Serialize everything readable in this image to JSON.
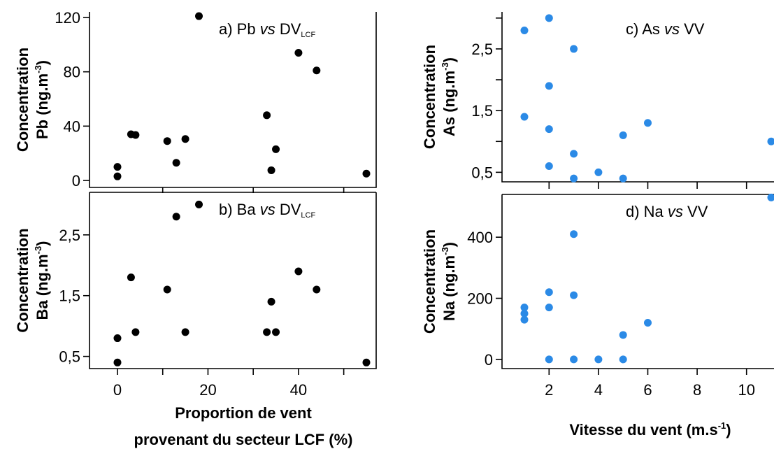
{
  "chart_data": [
    {
      "id": "a",
      "type": "scatter",
      "title": {
        "prefix": "a) Pb ",
        "vs": "vs",
        "var": " DV",
        "sub": "LCF"
      },
      "ylabel_lines": [
        "Concentration",
        "Pb (ng.m"
      ],
      "ylabel_sup": "-3",
      "ylabel_close": ")",
      "ylim": [
        0,
        120
      ],
      "yticks": [
        {
          "v": 0,
          "label": "0"
        },
        {
          "v": 40,
          "label": "40"
        },
        {
          "v": 80,
          "label": "80"
        },
        {
          "v": 120,
          "label": "120"
        }
      ],
      "xlim": [
        0,
        55
      ],
      "xticks_minor": [
        10,
        30,
        50
      ],
      "color": "#000000",
      "points": [
        {
          "x": 0,
          "y": 10
        },
        {
          "x": 0,
          "y": 3
        },
        {
          "x": 3,
          "y": 34
        },
        {
          "x": 4,
          "y": 33.5
        },
        {
          "x": 11,
          "y": 29
        },
        {
          "x": 13,
          "y": 13
        },
        {
          "x": 15,
          "y": 30.5
        },
        {
          "x": 18,
          "y": 121
        },
        {
          "x": 33,
          "y": 48
        },
        {
          "x": 34,
          "y": 7.5
        },
        {
          "x": 35,
          "y": 23
        },
        {
          "x": 40,
          "y": 94
        },
        {
          "x": 44,
          "y": 81
        },
        {
          "x": 55,
          "y": 5
        }
      ]
    },
    {
      "id": "b",
      "type": "scatter",
      "title": {
        "prefix": "b) Ba ",
        "vs": "vs",
        "var": " DV",
        "sub": "LCF"
      },
      "ylabel_lines": [
        "Concentration",
        "Ba (ng.m"
      ],
      "ylabel_sup": "-3",
      "ylabel_close": ")",
      "ylim": [
        0.3,
        3.2
      ],
      "yticks": [
        {
          "v": 0.5,
          "label": "0,5"
        },
        {
          "v": 1.5,
          "label": "1,5"
        },
        {
          "v": 2.5,
          "label": "2,5"
        }
      ],
      "xlim": [
        0,
        55
      ],
      "xticks": [
        {
          "v": 0,
          "label": "0"
        },
        {
          "v": 20,
          "label": "20"
        },
        {
          "v": 40,
          "label": "40"
        }
      ],
      "xticks_minor": [
        10,
        30,
        50
      ],
      "xlabel_lines": [
        "Proportion de vent",
        "provenant du secteur LCF (%)"
      ],
      "color": "#000000",
      "points": [
        {
          "x": 0,
          "y": 0.8
        },
        {
          "x": 0,
          "y": 0.4
        },
        {
          "x": 3,
          "y": 1.8
        },
        {
          "x": 4,
          "y": 0.9
        },
        {
          "x": 11,
          "y": 1.6
        },
        {
          "x": 13,
          "y": 2.8
        },
        {
          "x": 15,
          "y": 0.9
        },
        {
          "x": 18,
          "y": 3.0
        },
        {
          "x": 33,
          "y": 0.9
        },
        {
          "x": 34,
          "y": 1.4
        },
        {
          "x": 35,
          "y": 0.9
        },
        {
          "x": 40,
          "y": 1.9
        },
        {
          "x": 44,
          "y": 1.6
        },
        {
          "x": 55,
          "y": 0.4
        }
      ]
    },
    {
      "id": "c",
      "type": "scatter",
      "title": {
        "prefix": "c) As ",
        "vs": "vs",
        "var": " VV",
        "sub": ""
      },
      "ylabel_lines": [
        "Concentration",
        "As (ng.m"
      ],
      "ylabel_sup": "-3",
      "ylabel_close": ")",
      "ylim": [
        0.3,
        3.1
      ],
      "yticks": [
        {
          "v": 0.5,
          "label": "0,5"
        },
        {
          "v": 1.5,
          "label": "1,5"
        },
        {
          "v": 2.5,
          "label": "2,5"
        }
      ],
      "yticks_minor": [
        1,
        2,
        3
      ],
      "xlim": [
        1,
        11
      ],
      "xticks_minor": [
        2,
        4,
        6,
        8,
        10
      ],
      "color": "#2b8ae6",
      "points": [
        {
          "x": 1,
          "y": 2.8
        },
        {
          "x": 1,
          "y": 1.4
        },
        {
          "x": 2,
          "y": 3.0
        },
        {
          "x": 2,
          "y": 1.9
        },
        {
          "x": 2,
          "y": 1.2
        },
        {
          "x": 2,
          "y": 0.6
        },
        {
          "x": 3,
          "y": 2.5
        },
        {
          "x": 3,
          "y": 0.8
        },
        {
          "x": 3,
          "y": 0.4
        },
        {
          "x": 4,
          "y": 0.5
        },
        {
          "x": 5,
          "y": 1.1
        },
        {
          "x": 5,
          "y": 0.4
        },
        {
          "x": 6,
          "y": 1.3
        },
        {
          "x": 11,
          "y": 1.0
        }
      ]
    },
    {
      "id": "d",
      "type": "scatter",
      "title": {
        "prefix": "d) Na ",
        "vs": "vs",
        "var": " VV",
        "sub": ""
      },
      "ylabel_lines": [
        "Concentration",
        "Na (ng.m"
      ],
      "ylabel_sup": "-3",
      "ylabel_close": ")",
      "ylim": [
        -30,
        540
      ],
      "yticks": [
        {
          "v": 0,
          "label": "0"
        },
        {
          "v": 200,
          "label": "200"
        },
        {
          "v": 400,
          "label": "400"
        }
      ],
      "xlim": [
        1,
        11
      ],
      "xticks": [
        {
          "v": 2,
          "label": "2"
        },
        {
          "v": 4,
          "label": "4"
        },
        {
          "v": 6,
          "label": "6"
        },
        {
          "v": 8,
          "label": "8"
        },
        {
          "v": 10,
          "label": "10"
        }
      ],
      "xlabel_lines": [
        "Vitesse du vent (m.s"
      ],
      "xlabel_sup": "-1",
      "xlabel_close": ")",
      "color": "#2b8ae6",
      "points": [
        {
          "x": 1,
          "y": 170
        },
        {
          "x": 1,
          "y": 150
        },
        {
          "x": 1,
          "y": 130
        },
        {
          "x": 2,
          "y": 220
        },
        {
          "x": 2,
          "y": 170
        },
        {
          "x": 2,
          "y": 0
        },
        {
          "x": 3,
          "y": 410
        },
        {
          "x": 3,
          "y": 210
        },
        {
          "x": 3,
          "y": 0
        },
        {
          "x": 4,
          "y": 0
        },
        {
          "x": 5,
          "y": 80
        },
        {
          "x": 5,
          "y": 0
        },
        {
          "x": 6,
          "y": 120
        },
        {
          "x": 11,
          "y": 530
        }
      ]
    }
  ]
}
